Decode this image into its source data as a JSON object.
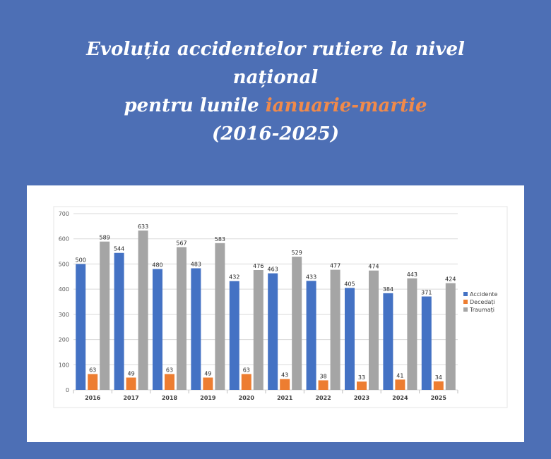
{
  "title": {
    "line1": "Evoluția accidentelor rutiere la nivel",
    "line2": "național",
    "line3_prefix": "pentru lunile ",
    "line3_highlight": "ianuarie-martie",
    "line4": "(2016-2025)"
  },
  "colors": {
    "background": "#4d6fb5",
    "highlight": "#f08a4b",
    "accidente": "#4472c4",
    "decedati": "#ed7d31",
    "traumati": "#a5a5a5"
  },
  "chart_data": {
    "type": "bar",
    "categories": [
      "2016",
      "2017",
      "2018",
      "2019",
      "2020",
      "2021",
      "2022",
      "2023",
      "2024",
      "2025"
    ],
    "series": [
      {
        "name": "Accidente",
        "color": "#4472c4",
        "values": [
          500,
          544,
          480,
          483,
          432,
          463,
          433,
          405,
          384,
          371
        ]
      },
      {
        "name": "Decedați",
        "color": "#ed7d31",
        "values": [
          63,
          49,
          63,
          49,
          63,
          43,
          38,
          33,
          41,
          34
        ]
      },
      {
        "name": "Traumați",
        "color": "#a5a5a5",
        "values": [
          589,
          633,
          567,
          583,
          476,
          529,
          477,
          474,
          443,
          424
        ]
      }
    ],
    "ylim": [
      0,
      700
    ],
    "yticks": [
      0,
      100,
      200,
      300,
      400,
      500,
      600,
      700
    ],
    "grid": true,
    "legend": "right",
    "data_labels": true
  }
}
